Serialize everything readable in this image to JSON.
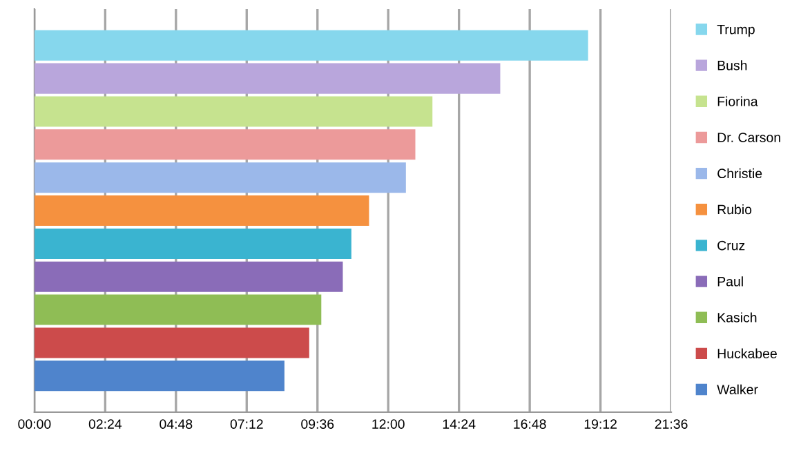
{
  "chart_data": {
    "type": "bar",
    "orientation": "horizontal",
    "grid": "x",
    "legend": "right",
    "categories": [
      null,
      null,
      null,
      null,
      null,
      null,
      null,
      null,
      null,
      null,
      null
    ],
    "xlim": [
      0,
      21.6
    ],
    "xticks": [
      {
        "value": 0,
        "label": "00:00"
      },
      {
        "value": 2.4,
        "label": "02:24"
      },
      {
        "value": 4.8,
        "label": "04:48"
      },
      {
        "value": 7.2,
        "label": "07:12"
      },
      {
        "value": 9.6,
        "label": "09:36"
      },
      {
        "value": 12,
        "label": "12:00"
      },
      {
        "value": 14.4,
        "label": "14:24"
      },
      {
        "value": 16.8,
        "label": "16:48"
      },
      {
        "value": 19.2,
        "label": "19:12"
      },
      {
        "value": 21.6,
        "label": "21:36"
      }
    ],
    "series": [
      {
        "name": "Trump",
        "color": "#86d7ed",
        "values": [
          18.78,
          null,
          null,
          null,
          null,
          null,
          null,
          null,
          null,
          null,
          null
        ]
      },
      {
        "name": "Bush",
        "color": "#b9a6dc",
        "values": [
          null,
          15.8,
          null,
          null,
          null,
          null,
          null,
          null,
          null,
          null,
          null
        ]
      },
      {
        "name": "Fiorina",
        "color": "#c6e38f",
        "values": [
          null,
          null,
          13.5,
          null,
          null,
          null,
          null,
          null,
          null,
          null,
          null
        ]
      },
      {
        "name": "Dr. Carson",
        "color": "#ec9a9a",
        "values": [
          null,
          null,
          null,
          12.92,
          null,
          null,
          null,
          null,
          null,
          null,
          null
        ]
      },
      {
        "name": "Christie",
        "color": "#9bb8ea",
        "values": [
          null,
          null,
          null,
          null,
          12.6,
          null,
          null,
          null,
          null,
          null,
          null
        ]
      },
      {
        "name": "Rubio",
        "color": "#f5913f",
        "values": [
          null,
          null,
          null,
          null,
          null,
          11.35,
          null,
          null,
          null,
          null,
          null
        ]
      },
      {
        "name": "Cruz",
        "color": "#3ab4d0",
        "values": [
          null,
          null,
          null,
          null,
          null,
          null,
          10.75,
          null,
          null,
          null,
          null
        ]
      },
      {
        "name": "Paul",
        "color": "#8a6cb8",
        "values": [
          null,
          null,
          null,
          null,
          null,
          null,
          null,
          10.46,
          null,
          null,
          null
        ]
      },
      {
        "name": "Kasich",
        "color": "#8fbd55",
        "values": [
          null,
          null,
          null,
          null,
          null,
          null,
          null,
          null,
          9.73,
          null,
          null
        ]
      },
      {
        "name": "Huckabee",
        "color": "#cc4b4b",
        "values": [
          null,
          null,
          null,
          null,
          null,
          null,
          null,
          null,
          null,
          9.32,
          null
        ]
      },
      {
        "name": "Walker",
        "color": "#4f84cc",
        "values": [
          null,
          null,
          null,
          null,
          null,
          null,
          null,
          null,
          null,
          null,
          8.48
        ]
      }
    ]
  }
}
